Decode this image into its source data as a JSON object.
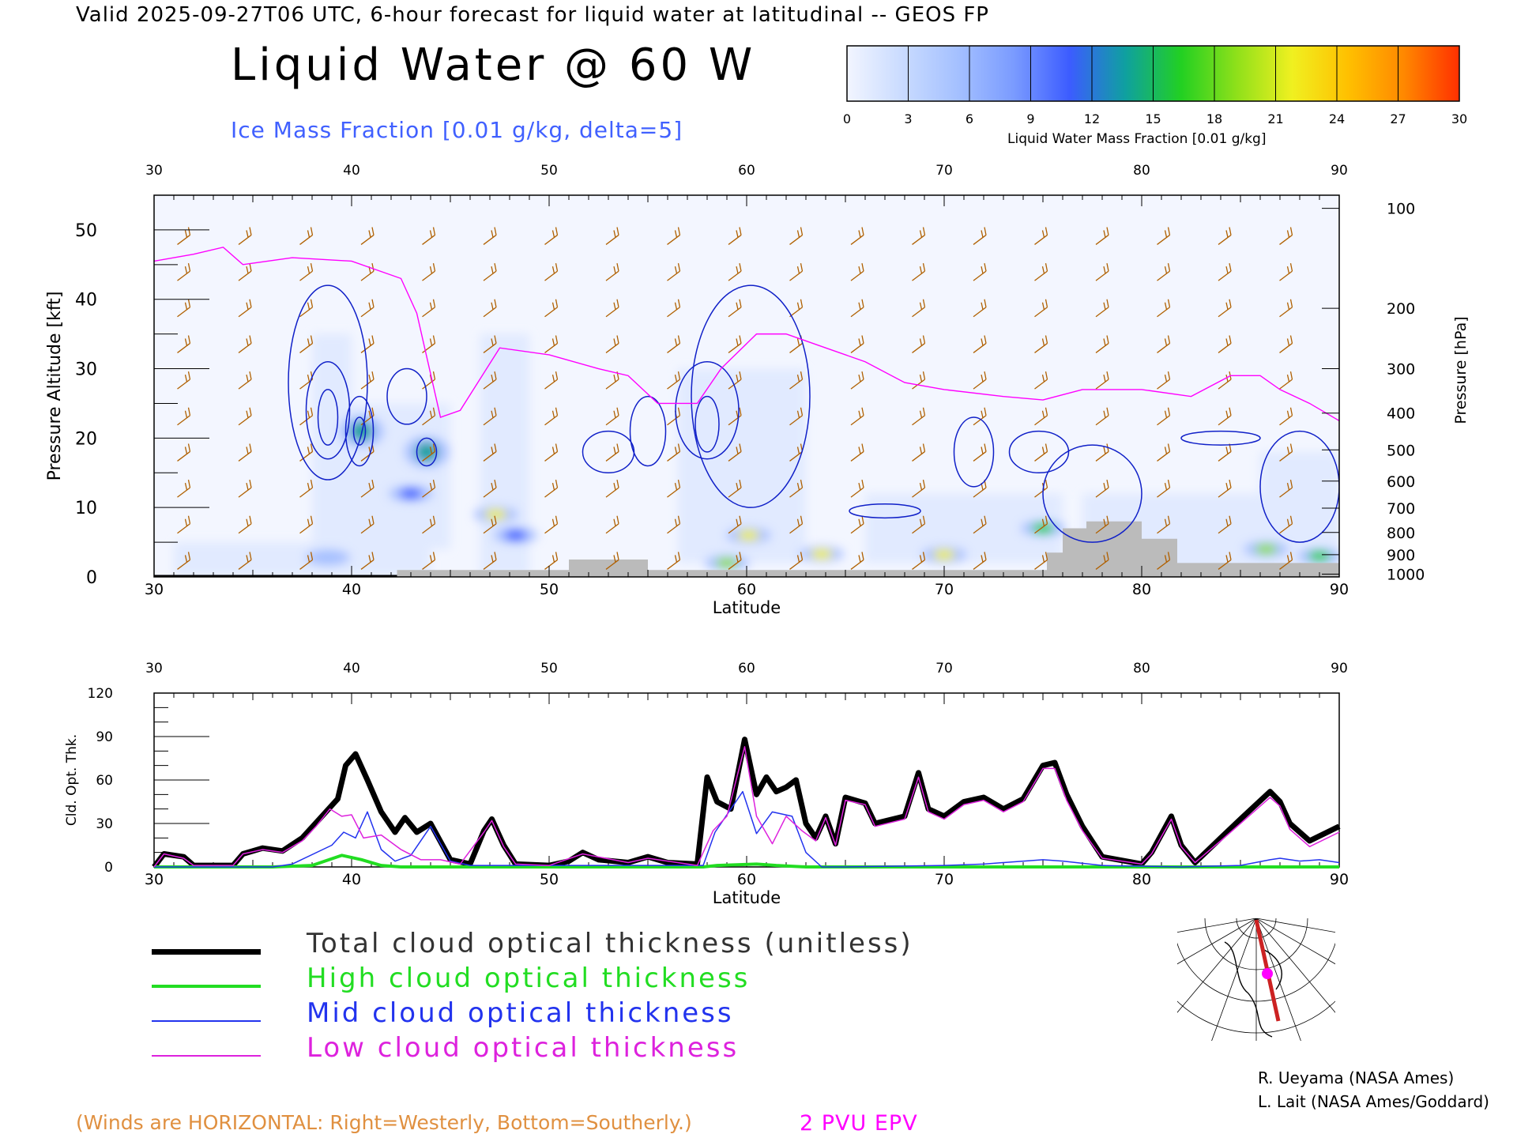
{
  "header": "Valid 2025-09-27T06 UTC, 6-hour forecast for liquid water at latitudinal -- GEOS FP",
  "title": "Liquid Water @ 60 W",
  "subtitle": "Ice Mass Fraction [0.01 g/kg, delta=5]",
  "colorbar": {
    "label": "Liquid Water Mass Fraction [0.01 g/kg]",
    "ticks": [
      "0",
      "3",
      "6",
      "9",
      "12",
      "15",
      "18",
      "21",
      "24",
      "27",
      "30"
    ],
    "colors": [
      "#f2f5ff",
      "#c9dbff",
      "#a4c0ff",
      "#7a9bff",
      "#3c5cff",
      "#0fa0a0",
      "#22d022",
      "#8fe01a",
      "#f0f020",
      "#ffc000",
      "#ff8800",
      "#ff3000"
    ]
  },
  "chart_data": [
    {
      "type": "heatmap",
      "title": "Liquid Water @ 60 W",
      "xlabel": "Latitude",
      "ylabel": "Pressure Altitude [kft]",
      "y2label": "Pressure [hPa]",
      "xlim": [
        30,
        90
      ],
      "ylim": [
        0,
        55
      ],
      "x_ticks": [
        "30",
        "40",
        "50",
        "60",
        "70",
        "80",
        "90"
      ],
      "y_ticks": [
        "0",
        "10",
        "20",
        "30",
        "40",
        "50"
      ],
      "pressure_ticks": [
        {
          "label": "100",
          "kft": 53.1
        },
        {
          "label": "200",
          "kft": 38.7
        },
        {
          "label": "300",
          "kft": 30.0
        },
        {
          "label": "400",
          "kft": 23.6
        },
        {
          "label": "500",
          "kft": 18.3
        },
        {
          "label": "600",
          "kft": 13.8
        },
        {
          "label": "700",
          "kft": 9.9
        },
        {
          "label": "800",
          "kft": 6.4
        },
        {
          "label": "900",
          "kft": 3.2
        },
        {
          "label": "1000",
          "kft": 0.4
        }
      ],
      "liquid_water_blobs": [
        {
          "lat": 38.8,
          "kft": 2.8,
          "value": 3
        },
        {
          "lat": 40.5,
          "kft": 21,
          "value": 12
        },
        {
          "lat": 43.8,
          "kft": 18,
          "value": 12
        },
        {
          "lat": 43.0,
          "kft": 12,
          "value": 9
        },
        {
          "lat": 47.3,
          "kft": 9,
          "value": 21
        },
        {
          "lat": 48.3,
          "kft": 6,
          "value": 9
        },
        {
          "lat": 60.1,
          "kft": 6,
          "value": 21
        },
        {
          "lat": 59.0,
          "kft": 2,
          "value": 18
        },
        {
          "lat": 63.8,
          "kft": 3.3,
          "value": 21
        },
        {
          "lat": 70.0,
          "kft": 3.2,
          "value": 21
        },
        {
          "lat": 75.0,
          "kft": 7,
          "value": 15
        },
        {
          "lat": 86.3,
          "kft": 4,
          "value": 18
        },
        {
          "lat": 89.0,
          "kft": 3,
          "value": 15
        }
      ],
      "epv_2pvu_kft": [
        [
          30,
          45.5
        ],
        [
          32,
          46.5
        ],
        [
          33.5,
          47.5
        ],
        [
          34.5,
          45
        ],
        [
          37,
          46
        ],
        [
          40,
          45.5
        ],
        [
          42.5,
          43
        ],
        [
          43.3,
          38
        ],
        [
          44.5,
          23
        ],
        [
          45.5,
          24
        ],
        [
          47.5,
          33
        ],
        [
          50,
          32
        ],
        [
          52.5,
          30
        ],
        [
          54,
          29
        ],
        [
          55.5,
          25
        ],
        [
          57.5,
          25
        ],
        [
          58.7,
          30
        ],
        [
          60.5,
          35
        ],
        [
          62,
          35
        ],
        [
          64,
          33
        ],
        [
          66,
          31
        ],
        [
          68,
          28
        ],
        [
          70,
          27
        ],
        [
          73,
          26
        ],
        [
          75,
          25.5
        ],
        [
          77,
          27
        ],
        [
          80,
          27
        ],
        [
          82.5,
          26
        ],
        [
          84.5,
          29
        ],
        [
          86,
          29
        ],
        [
          87,
          27
        ],
        [
          88.5,
          25
        ],
        [
          90,
          22.5
        ]
      ],
      "terrain_kft": [
        [
          30,
          0
        ],
        [
          42.3,
          0
        ],
        [
          42.3,
          1
        ],
        [
          51,
          1
        ],
        [
          51,
          2.5
        ],
        [
          55,
          2.5
        ],
        [
          55,
          1
        ],
        [
          75.2,
          1
        ],
        [
          75.2,
          3.5
        ],
        [
          76,
          3.5
        ],
        [
          76,
          7
        ],
        [
          77.2,
          7
        ],
        [
          77.2,
          8
        ],
        [
          80,
          8
        ],
        [
          80,
          5.5
        ],
        [
          81.8,
          5.5
        ],
        [
          81.8,
          2
        ],
        [
          90,
          2
        ],
        [
          90,
          0
        ]
      ]
    },
    {
      "type": "line",
      "xlabel": "Latitude",
      "ylabel": "Cld. Opt. Thk.",
      "xlim": [
        30,
        90
      ],
      "ylim": [
        0,
        120
      ],
      "x_ticks": [
        "30",
        "40",
        "50",
        "60",
        "70",
        "80",
        "90"
      ],
      "y_ticks": [
        "0",
        "30",
        "60",
        "90",
        "120"
      ],
      "series": [
        {
          "name": "Total cloud optical thickness (unitless)",
          "color": "#000000",
          "points": [
            [
              30,
              0
            ],
            [
              30.5,
              9
            ],
            [
              31.5,
              7
            ],
            [
              32,
              1
            ],
            [
              34,
              1
            ],
            [
              34.5,
              9
            ],
            [
              35.5,
              13
            ],
            [
              36.5,
              11
            ],
            [
              37.5,
              20
            ],
            [
              38.5,
              35
            ],
            [
              39.3,
              47
            ],
            [
              39.7,
              70
            ],
            [
              40.2,
              78
            ],
            [
              40.8,
              60
            ],
            [
              41.5,
              38
            ],
            [
              42.2,
              24
            ],
            [
              42.7,
              34
            ],
            [
              43.3,
              24
            ],
            [
              44,
              30
            ],
            [
              45,
              5
            ],
            [
              46,
              2
            ],
            [
              46.7,
              25
            ],
            [
              47.1,
              33
            ],
            [
              47.7,
              15
            ],
            [
              48.3,
              2
            ],
            [
              50,
              1
            ],
            [
              51,
              4
            ],
            [
              51.7,
              10
            ],
            [
              52.5,
              5
            ],
            [
              54,
              3
            ],
            [
              55,
              7
            ],
            [
              56,
              3
            ],
            [
              57.5,
              2
            ],
            [
              58,
              62
            ],
            [
              58.5,
              45
            ],
            [
              59.2,
              40
            ],
            [
              59.9,
              88
            ],
            [
              60.5,
              50
            ],
            [
              61,
              62
            ],
            [
              61.5,
              52
            ],
            [
              62,
              55
            ],
            [
              62.5,
              60
            ],
            [
              63,
              30
            ],
            [
              63.5,
              20
            ],
            [
              64,
              35
            ],
            [
              64.5,
              16
            ],
            [
              65,
              48
            ],
            [
              66,
              44
            ],
            [
              66.5,
              30
            ],
            [
              68,
              35
            ],
            [
              68.7,
              65
            ],
            [
              69.2,
              40
            ],
            [
              70,
              35
            ],
            [
              71,
              45
            ],
            [
              72,
              48
            ],
            [
              73,
              40
            ],
            [
              74,
              47
            ],
            [
              75,
              70
            ],
            [
              75.6,
              72
            ],
            [
              76.2,
              50
            ],
            [
              77,
              28
            ],
            [
              78,
              7
            ],
            [
              80,
              2
            ],
            [
              80.5,
              10
            ],
            [
              81.5,
              35
            ],
            [
              82,
              15
            ],
            [
              82.7,
              3
            ],
            [
              84,
              20
            ],
            [
              85,
              33
            ],
            [
              86.5,
              52
            ],
            [
              87,
              45
            ],
            [
              87.5,
              30
            ],
            [
              88.5,
              18
            ],
            [
              90,
              28
            ]
          ]
        },
        {
          "name": "High cloud optical thickness",
          "color": "#22dd22",
          "points": [
            [
              30,
              0
            ],
            [
              36,
              0
            ],
            [
              38,
              1
            ],
            [
              39.5,
              8
            ],
            [
              40.5,
              5
            ],
            [
              41.5,
              1
            ],
            [
              42.5,
              0
            ],
            [
              57.8,
              0
            ],
            [
              58.5,
              1
            ],
            [
              60.5,
              2
            ],
            [
              61.5,
              1
            ],
            [
              63,
              0
            ],
            [
              90,
              0
            ]
          ]
        },
        {
          "name": "Mid cloud optical thickness",
          "color": "#2233ee",
          "points": [
            [
              30,
              0
            ],
            [
              36,
              0
            ],
            [
              37,
              2
            ],
            [
              39,
              15
            ],
            [
              39.6,
              24
            ],
            [
              40.2,
              20
            ],
            [
              40.8,
              38
            ],
            [
              41.5,
              12
            ],
            [
              42.2,
              4
            ],
            [
              43,
              8
            ],
            [
              44,
              28
            ],
            [
              45,
              4
            ],
            [
              46,
              1
            ],
            [
              57.8,
              1
            ],
            [
              58.4,
              24
            ],
            [
              59.2,
              40
            ],
            [
              59.8,
              52
            ],
            [
              60.5,
              23
            ],
            [
              61.3,
              38
            ],
            [
              62.3,
              35
            ],
            [
              63,
              10
            ],
            [
              63.8,
              0
            ],
            [
              65,
              0
            ],
            [
              70,
              1
            ],
            [
              72,
              2
            ],
            [
              75,
              5
            ],
            [
              76,
              4
            ],
            [
              78,
              1
            ],
            [
              82,
              0
            ],
            [
              85,
              1
            ],
            [
              86.5,
              5
            ],
            [
              87,
              6
            ],
            [
              88,
              4
            ],
            [
              89,
              5
            ],
            [
              90,
              3
            ]
          ]
        },
        {
          "name": "Low cloud optical thickness",
          "color": "#dd22dd",
          "points": [
            [
              30,
              0
            ],
            [
              30.5,
              9
            ],
            [
              31.5,
              6
            ],
            [
              32,
              1
            ],
            [
              34,
              1
            ],
            [
              34.5,
              9
            ],
            [
              35.5,
              12
            ],
            [
              36.5,
              10
            ],
            [
              37.5,
              18
            ],
            [
              38.2,
              28
            ],
            [
              38.9,
              40
            ],
            [
              39.5,
              35
            ],
            [
              40,
              36
            ],
            [
              40.6,
              20
            ],
            [
              41.5,
              22
            ],
            [
              42.5,
              12
            ],
            [
              43.5,
              5
            ],
            [
              44.5,
              5
            ],
            [
              45.5,
              2
            ],
            [
              46.7,
              24
            ],
            [
              47.1,
              32
            ],
            [
              47.7,
              14
            ],
            [
              48.3,
              2
            ],
            [
              50,
              1
            ],
            [
              51.7,
              9
            ],
            [
              54,
              3
            ],
            [
              55,
              6
            ],
            [
              57.5,
              1
            ],
            [
              58.3,
              25
            ],
            [
              59,
              35
            ],
            [
              59.9,
              83
            ],
            [
              60.5,
              35
            ],
            [
              61.3,
              16
            ],
            [
              62,
              35
            ],
            [
              62.8,
              25
            ],
            [
              63.5,
              18
            ],
            [
              64,
              34
            ],
            [
              64.5,
              15
            ],
            [
              65,
              46
            ],
            [
              66,
              43
            ],
            [
              66.5,
              28
            ],
            [
              68,
              33
            ],
            [
              68.7,
              62
            ],
            [
              69.2,
              38
            ],
            [
              70,
              33
            ],
            [
              71,
              43
            ],
            [
              72,
              46
            ],
            [
              73,
              38
            ],
            [
              74,
              45
            ],
            [
              75,
              68
            ],
            [
              75.6,
              68
            ],
            [
              76.2,
              46
            ],
            [
              77,
              25
            ],
            [
              78,
              6
            ],
            [
              80,
              2
            ],
            [
              80.5,
              9
            ],
            [
              81.5,
              33
            ],
            [
              82,
              14
            ],
            [
              82.7,
              3
            ],
            [
              84,
              18
            ],
            [
              85,
              30
            ],
            [
              86.5,
              48
            ],
            [
              87,
              42
            ],
            [
              87.5,
              26
            ],
            [
              88.5,
              14
            ],
            [
              90,
              24
            ]
          ]
        }
      ]
    }
  ],
  "legend": [
    {
      "label": "Total cloud optical thickness (unitless)",
      "color": "#000000",
      "width": 7
    },
    {
      "label": "High cloud optical thickness",
      "color": "#22dd22",
      "width": 4
    },
    {
      "label": "Mid cloud optical thickness",
      "color": "#2233ee",
      "width": 2
    },
    {
      "label": "Low cloud optical thickness",
      "color": "#dd22dd",
      "width": 2
    }
  ],
  "colors": {
    "text_orange": "#e09040",
    "wind_barb": "#b06000",
    "ice_contour": "#1020c8",
    "epv": "#ff00ff",
    "terrain": "#bbbbbb",
    "header_blue": "#4060ff"
  },
  "notes": {
    "winds": "(Winds are HORIZONTAL: Right=Westerly, Bottom=Southerly.)",
    "epv": "2 PVU EPV"
  },
  "credits": [
    "R. Ueyama (NASA Ames)",
    "L. Lait (NASA Ames/Goddard)"
  ]
}
